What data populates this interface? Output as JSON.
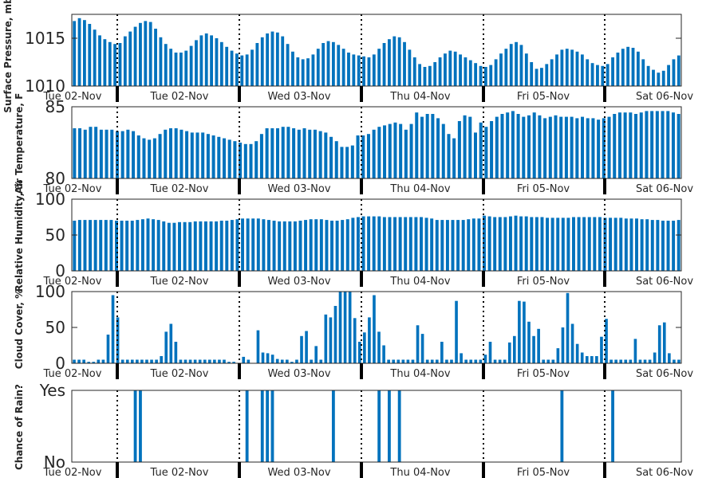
{
  "bar_color": "#0072bd",
  "chart_data": [
    {
      "type": "bar",
      "ylabel": "Surface Pressure, mb",
      "ylim": [
        1010,
        1017.5
      ],
      "yticks": [
        "1010",
        "1015"
      ],
      "ytick_values": [
        1010,
        1015
      ],
      "day_ticks": [
        "Tue 02-Nov",
        "Tue 02-Nov",
        "Wed 03-Nov",
        "Thu 04-Nov",
        "Fri 05-Nov",
        "Sat 06-Nov"
      ],
      "values": [
        1016.8,
        1017.1,
        1016.9,
        1016.5,
        1015.9,
        1015.3,
        1014.9,
        1014.6,
        1014.4,
        1014.5,
        1015.2,
        1015.7,
        1016.2,
        1016.6,
        1016.8,
        1016.7,
        1016.0,
        1015.1,
        1014.4,
        1013.9,
        1013.5,
        1013.5,
        1013.7,
        1014.2,
        1014.8,
        1015.3,
        1015.5,
        1015.3,
        1015.0,
        1014.6,
        1014.1,
        1013.7,
        1013.4,
        1013.2,
        1013.3,
        1013.8,
        1014.5,
        1015.1,
        1015.5,
        1015.7,
        1015.6,
        1015.2,
        1014.4,
        1013.6,
        1013.0,
        1012.8,
        1012.9,
        1013.3,
        1013.9,
        1014.5,
        1014.7,
        1014.6,
        1014.3,
        1013.9,
        1013.5,
        1013.3,
        1013.2,
        1013.1,
        1013.0,
        1013.3,
        1013.9,
        1014.5,
        1014.9,
        1015.2,
        1015.1,
        1014.6,
        1013.8,
        1013.0,
        1012.3,
        1012.0,
        1012.1,
        1012.5,
        1013.0,
        1013.4,
        1013.7,
        1013.6,
        1013.3,
        1013.0,
        1012.7,
        1012.4,
        1012.1,
        1012.0,
        1012.2,
        1012.8,
        1013.4,
        1013.9,
        1014.4,
        1014.6,
        1014.3,
        1013.4,
        1012.5,
        1011.8,
        1011.9,
        1012.3,
        1012.8,
        1013.3,
        1013.8,
        1013.9,
        1013.8,
        1013.6,
        1013.3,
        1012.8,
        1012.4,
        1012.2,
        1012.1,
        1012.3,
        1013.0,
        1013.5,
        1013.9,
        1014.1,
        1014.0,
        1013.6,
        1012.8,
        1012.1,
        1011.7,
        1011.4,
        1011.6,
        1012.2,
        1012.8,
        1013.2
      ]
    },
    {
      "type": "bar",
      "ylabel": "Air Temperature, F",
      "ylim": [
        80,
        85
      ],
      "yticks": [
        "80",
        "85"
      ],
      "ytick_values": [
        80,
        85
      ],
      "day_ticks": [
        "Tue 02-Nov",
        "Tue 02-Nov",
        "Wed 03-Nov",
        "Thu 04-Nov",
        "Fri 05-Nov",
        "Sat 06-Nov"
      ],
      "values": [
        83.5,
        83.5,
        83.4,
        83.6,
        83.6,
        83.4,
        83.4,
        83.4,
        83.3,
        83.3,
        83.4,
        83.3,
        83.0,
        82.8,
        82.7,
        82.8,
        83.1,
        83.4,
        83.5,
        83.5,
        83.4,
        83.3,
        83.2,
        83.2,
        83.2,
        83.1,
        83.0,
        82.9,
        82.8,
        82.7,
        82.6,
        82.5,
        82.4,
        82.4,
        82.6,
        83.1,
        83.5,
        83.5,
        83.5,
        83.6,
        83.6,
        83.5,
        83.4,
        83.5,
        83.4,
        83.4,
        83.3,
        83.2,
        82.9,
        82.6,
        82.2,
        82.2,
        82.3,
        83.0,
        83.0,
        83.1,
        83.4,
        83.6,
        83.7,
        83.8,
        83.9,
        83.8,
        83.4,
        83.8,
        84.6,
        84.3,
        84.5,
        84.5,
        84.2,
        83.8,
        83.1,
        82.8,
        84.0,
        84.4,
        84.3,
        83.2,
        83.9,
        83.6,
        84.0,
        84.3,
        84.5,
        84.6,
        84.7,
        84.5,
        84.3,
        84.4,
        84.6,
        84.4,
        84.2,
        84.3,
        84.4,
        84.3,
        84.3,
        84.3,
        84.2,
        84.3,
        84.2,
        84.2,
        84.1,
        84.2,
        84.3,
        84.5,
        84.6,
        84.6,
        84.6,
        84.5,
        84.6,
        84.7,
        84.7,
        84.7,
        84.7,
        84.7,
        84.6,
        84.5
      ]
    },
    {
      "type": "bar",
      "ylabel": "Relative Humidity, %",
      "ylim": [
        0,
        100
      ],
      "yticks": [
        "0",
        "50",
        "100"
      ],
      "ytick_values": [
        0,
        50,
        100
      ],
      "day_ticks": [
        "Tue 02-Nov",
        "Tue 02-Nov",
        "Wed 03-Nov",
        "Thu 04-Nov",
        "Fri 05-Nov",
        "Sat 06-Nov"
      ],
      "values": [
        70,
        71,
        71,
        71,
        71,
        71,
        71,
        71,
        70,
        70,
        70,
        70,
        71,
        72,
        73,
        72,
        71,
        69,
        67,
        67,
        68,
        68,
        68,
        69,
        69,
        69,
        69,
        69,
        70,
        70,
        71,
        72,
        73,
        73,
        73,
        73,
        72,
        71,
        70,
        69,
        69,
        69,
        69,
        70,
        71,
        72,
        72,
        72,
        71,
        70,
        70,
        71,
        72,
        74,
        75,
        76,
        76,
        76,
        76,
        75,
        75,
        75,
        75,
        75,
        75,
        75,
        75,
        74,
        73,
        71,
        71,
        71,
        71,
        71,
        71,
        72,
        73,
        73,
        77,
        76,
        75,
        75,
        75,
        76,
        77,
        76,
        76,
        75,
        75,
        75,
        74,
        74,
        74,
        74,
        74,
        75,
        75,
        75,
        75,
        75,
        75,
        74,
        74,
        74,
        74,
        73,
        73,
        73,
        72,
        72,
        71,
        71,
        70,
        70,
        70,
        71
      ]
    },
    {
      "type": "bar",
      "ylabel": "Cloud Cover, %",
      "ylim": [
        0,
        100
      ],
      "yticks": [
        "0",
        "50",
        "100"
      ],
      "ytick_values": [
        0,
        50,
        100
      ],
      "day_ticks": [
        "Tue 02-Nov",
        "Tue 02-Nov",
        "Wed 03-Nov",
        "Thu 04-Nov",
        "Fri 05-Nov",
        "Sat 06-Nov"
      ],
      "values": [
        5,
        5,
        5,
        2,
        2,
        5,
        5,
        40,
        95,
        64,
        5,
        5,
        5,
        5,
        5,
        5,
        5,
        5,
        10,
        44,
        55,
        30,
        5,
        5,
        5,
        5,
        5,
        5,
        5,
        5,
        5,
        5,
        2,
        2,
        0,
        9,
        5,
        0,
        46,
        15,
        14,
        12,
        6,
        5,
        5,
        2,
        5,
        38,
        45,
        5,
        24,
        5,
        68,
        64,
        80,
        100,
        100,
        100,
        63,
        30,
        43,
        64,
        95,
        44,
        25,
        5,
        5,
        5,
        5,
        5,
        5,
        53,
        41,
        5,
        5,
        5,
        30,
        5,
        5,
        87,
        14,
        5,
        5,
        5,
        5,
        12,
        30,
        5,
        5,
        5,
        29,
        38,
        87,
        86,
        58,
        38,
        48,
        5,
        5,
        5,
        21,
        50,
        98,
        55,
        27,
        15,
        10,
        10,
        10,
        37,
        62,
        5,
        5,
        5,
        5,
        5,
        34,
        5,
        5,
        5,
        15,
        53,
        57,
        14,
        5,
        5
      ]
    },
    {
      "type": "bar",
      "ylabel": "Chance of Rain?",
      "ylim": [
        0,
        1
      ],
      "yticks": [
        "No",
        "Yes"
      ],
      "ytick_values": [
        0,
        1
      ],
      "day_ticks": [
        "Tue 02-Nov",
        "Tue 02-Nov",
        "Wed 03-Nov",
        "Thu 04-Nov",
        "Fri 05-Nov",
        "Sat 06-Nov"
      ],
      "values": [
        0,
        0,
        0,
        0,
        0,
        0,
        0,
        0,
        0,
        0,
        0,
        0,
        1,
        1,
        0,
        0,
        0,
        0,
        0,
        0,
        0,
        0,
        0,
        0,
        0,
        0,
        0,
        0,
        0,
        0,
        0,
        0,
        0,
        0,
        1,
        0,
        0,
        1,
        1,
        1,
        0,
        0,
        0,
        0,
        0,
        0,
        0,
        0,
        0,
        0,
        0,
        1,
        0,
        0,
        0,
        0,
        0,
        0,
        0,
        0,
        1,
        0,
        1,
        0,
        1,
        0,
        0,
        0,
        0,
        0,
        0,
        0,
        0,
        0,
        0,
        0,
        0,
        0,
        0,
        0,
        0,
        0,
        0,
        0,
        0,
        0,
        0,
        0,
        0,
        0,
        0,
        0,
        0,
        0,
        0,
        0,
        1,
        0,
        0,
        0,
        0,
        0,
        0,
        0,
        0,
        0,
        1,
        0,
        0,
        0,
        0,
        0,
        0,
        0,
        0,
        0,
        0,
        0,
        0,
        0
      ]
    }
  ]
}
